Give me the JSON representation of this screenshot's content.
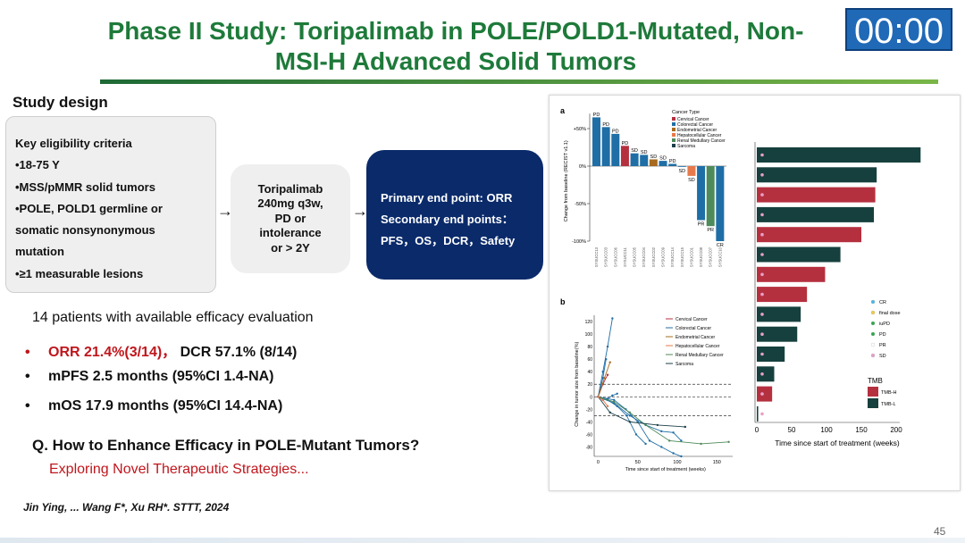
{
  "title": {
    "line1": "Phase II Study: Toripalimab in POLE/POLD1-Mutated, Non-",
    "line2": "MSI-H Advanced Solid Tumors"
  },
  "timer": "00:00",
  "study_design": {
    "label": "Study design",
    "criteria": [
      "Key eligibility criteria",
      "•18-75 Y",
      "•MSS/pMMR solid tumors",
      "•POLE, POLD1 germline or",
      "somatic nonsynonymous",
      "mutation",
      "•≥1 measurable lesions"
    ],
    "arrow": "→",
    "drug": [
      "Toripalimab",
      "240mg q3w,",
      "PD or",
      "intolerance",
      "or > 2Y"
    ],
    "endpoints": [
      "Primary end point: ORR",
      "Secondary end points：",
      "PFS，OS，DCR，Safety"
    ]
  },
  "efficacy": {
    "intro": "14 patients with available efficacy evaluation",
    "orr": "ORR 21.4%(3/14)，",
    "dcr": "DCR 57.1% (8/14)",
    "pfs": "mPFS 2.5 months (95%CI 1.4-NA)",
    "os": "mOS 17.9 months (95%CI 14.4-NA)",
    "bullet": "•"
  },
  "question": "Q. How to Enhance Efficacy in POLE-Mutant Tumors?",
  "exploring": "Exploring Novel Therapeutic Strategies...",
  "citation": "Jin Ying, ... Wang F*, Xu RH*. STTT, 2024",
  "page_number": "45",
  "colors": {
    "cervical": "#b5303f",
    "colorectal": "#1f6ea6",
    "endometrial": "#a76a1e",
    "hepatocellular": "#e8794a",
    "renal": "#4e8a5a",
    "sarcoma": "#1b3f4a",
    "tmb_h": "#b5303f",
    "tmb_l": "#16403d"
  },
  "chart_data": [
    {
      "type": "bar",
      "panel": "a",
      "ylabel": "Change from baseline (RECIST v1.1)",
      "yticks": [
        "+50%",
        "0%",
        "-50%",
        "-100%"
      ],
      "ylim": [
        -100,
        70
      ],
      "categories": [
        "SYSUCC13",
        "SYSUCC03",
        "SYSUCC06",
        "SYSUCC11",
        "SYSUCC05",
        "SYSUCC04",
        "SYSUCC02",
        "SYSUCC09",
        "SYSUCC14",
        "SYSUCC15",
        "SYSUCC01",
        "SYSUCC08",
        "SYSUCC07",
        "SYSUCC10"
      ],
      "values": [
        65,
        52,
        43,
        27,
        17,
        15,
        9,
        7,
        3,
        -1,
        -13,
        -72,
        -80,
        -100
      ],
      "cancer": [
        "colorectal",
        "colorectal",
        "colorectal",
        "cervical",
        "colorectal",
        "colorectal",
        "endometrial",
        "colorectal",
        "colorectal",
        "colorectal",
        "hepatocellular",
        "colorectal",
        "renal",
        "colorectal"
      ],
      "bar_labels": [
        "PD",
        "PD",
        "PD",
        "PD",
        "SD",
        "SD",
        "SD",
        "SD",
        "PD",
        "SD",
        "SD",
        "PR",
        "PR",
        "CR"
      ],
      "legend": {
        "title": "Cancer Type",
        "entries": [
          "Cervical Cancer",
          "Colorectal Cancer",
          "Endometrial Cancer",
          "Hepatocellular Cancer",
          "Renal Medullary Cancer",
          "Sarcoma"
        ]
      }
    },
    {
      "type": "line",
      "panel": "b",
      "ylabel": "Change in tumor size from baseline(%)",
      "xlabel": "Time since start of treatment (weeks)",
      "xticks": [
        "0",
        "50",
        "100",
        "150"
      ],
      "yticks": [
        "120",
        "100",
        "80",
        "60",
        "40",
        "20",
        "0",
        "-20",
        "-40",
        "-60",
        "-80"
      ],
      "xlim": [
        -5,
        170
      ],
      "ylim": [
        -95,
        130
      ],
      "reference_lines": [
        20,
        0,
        -30
      ],
      "legend": [
        "Cervical Cancer",
        "Colorectal Cancer",
        "Endometrial Cancer",
        "Hepatocellular Cancer",
        "Renal Medullary Cancer",
        "Sarcoma"
      ],
      "series": [
        {
          "name": "Colorectal Cancer",
          "x": [
            0,
            6,
            12,
            18
          ],
          "y": [
            0,
            40,
            80,
            125
          ]
        },
        {
          "name": "Colorectal Cancer",
          "x": [
            0,
            6,
            10
          ],
          "y": [
            0,
            30,
            60
          ]
        },
        {
          "name": "Cervical Cancer",
          "x": [
            0,
            6,
            12
          ],
          "y": [
            0,
            20,
            35
          ]
        },
        {
          "name": "Endometrial Cancer",
          "x": [
            0,
            8,
            15
          ],
          "y": [
            0,
            30,
            55
          ]
        },
        {
          "name": "Colorectal Cancer",
          "x": [
            0,
            6,
            12,
            18,
            24
          ],
          "y": [
            0,
            -5,
            -3,
            2,
            5
          ]
        },
        {
          "name": "Colorectal Cancer",
          "x": [
            0,
            12,
            24,
            36,
            48,
            60
          ],
          "y": [
            0,
            -5,
            -15,
            -30,
            -60,
            -75
          ]
        },
        {
          "name": "Colorectal Cancer",
          "x": [
            0,
            20,
            35,
            50,
            65,
            80,
            95,
            105
          ],
          "y": [
            0,
            -5,
            -20,
            -40,
            -70,
            -80,
            -90,
            -95
          ]
        },
        {
          "name": "Colorectal Cancer",
          "x": [
            0,
            20,
            40,
            60,
            80,
            95,
            105
          ],
          "y": [
            0,
            -10,
            -30,
            -45,
            -55,
            -57,
            -70
          ]
        },
        {
          "name": "Renal Medullary Cancer",
          "x": [
            0,
            20,
            40,
            60,
            90,
            130,
            165
          ],
          "y": [
            0,
            -8,
            -25,
            -45,
            -70,
            -75,
            -72
          ]
        },
        {
          "name": "Sarcoma",
          "x": [
            0,
            15,
            40,
            75,
            110
          ],
          "y": [
            0,
            -25,
            -40,
            -45,
            -48
          ]
        },
        {
          "name": "Hepatocellular Cancer",
          "x": [
            0,
            6,
            12
          ],
          "y": [
            0,
            -5,
            -15
          ]
        }
      ]
    },
    {
      "type": "bar",
      "orientation": "horizontal",
      "panel": "swimmer",
      "xlabel": "Time since start of treatment (weeks)",
      "xticks": [
        "0",
        "50",
        "100",
        "150",
        "200"
      ],
      "xlim": [
        0,
        205
      ],
      "durations": [
        235,
        172,
        170,
        168,
        150,
        120,
        98,
        72,
        63,
        58,
        40,
        25,
        22,
        2
      ],
      "tmb": [
        "L",
        "L",
        "H",
        "L",
        "H",
        "L",
        "H",
        "H",
        "L",
        "L",
        "L",
        "L",
        "H",
        "L"
      ],
      "legend": {
        "events": [
          "CR",
          "final dose",
          "iuPD",
          "PD",
          "PR",
          "SD"
        ],
        "tmb_title": "TMB",
        "tmb_entries": [
          "TMB-H",
          "TMB-L"
        ]
      }
    }
  ]
}
